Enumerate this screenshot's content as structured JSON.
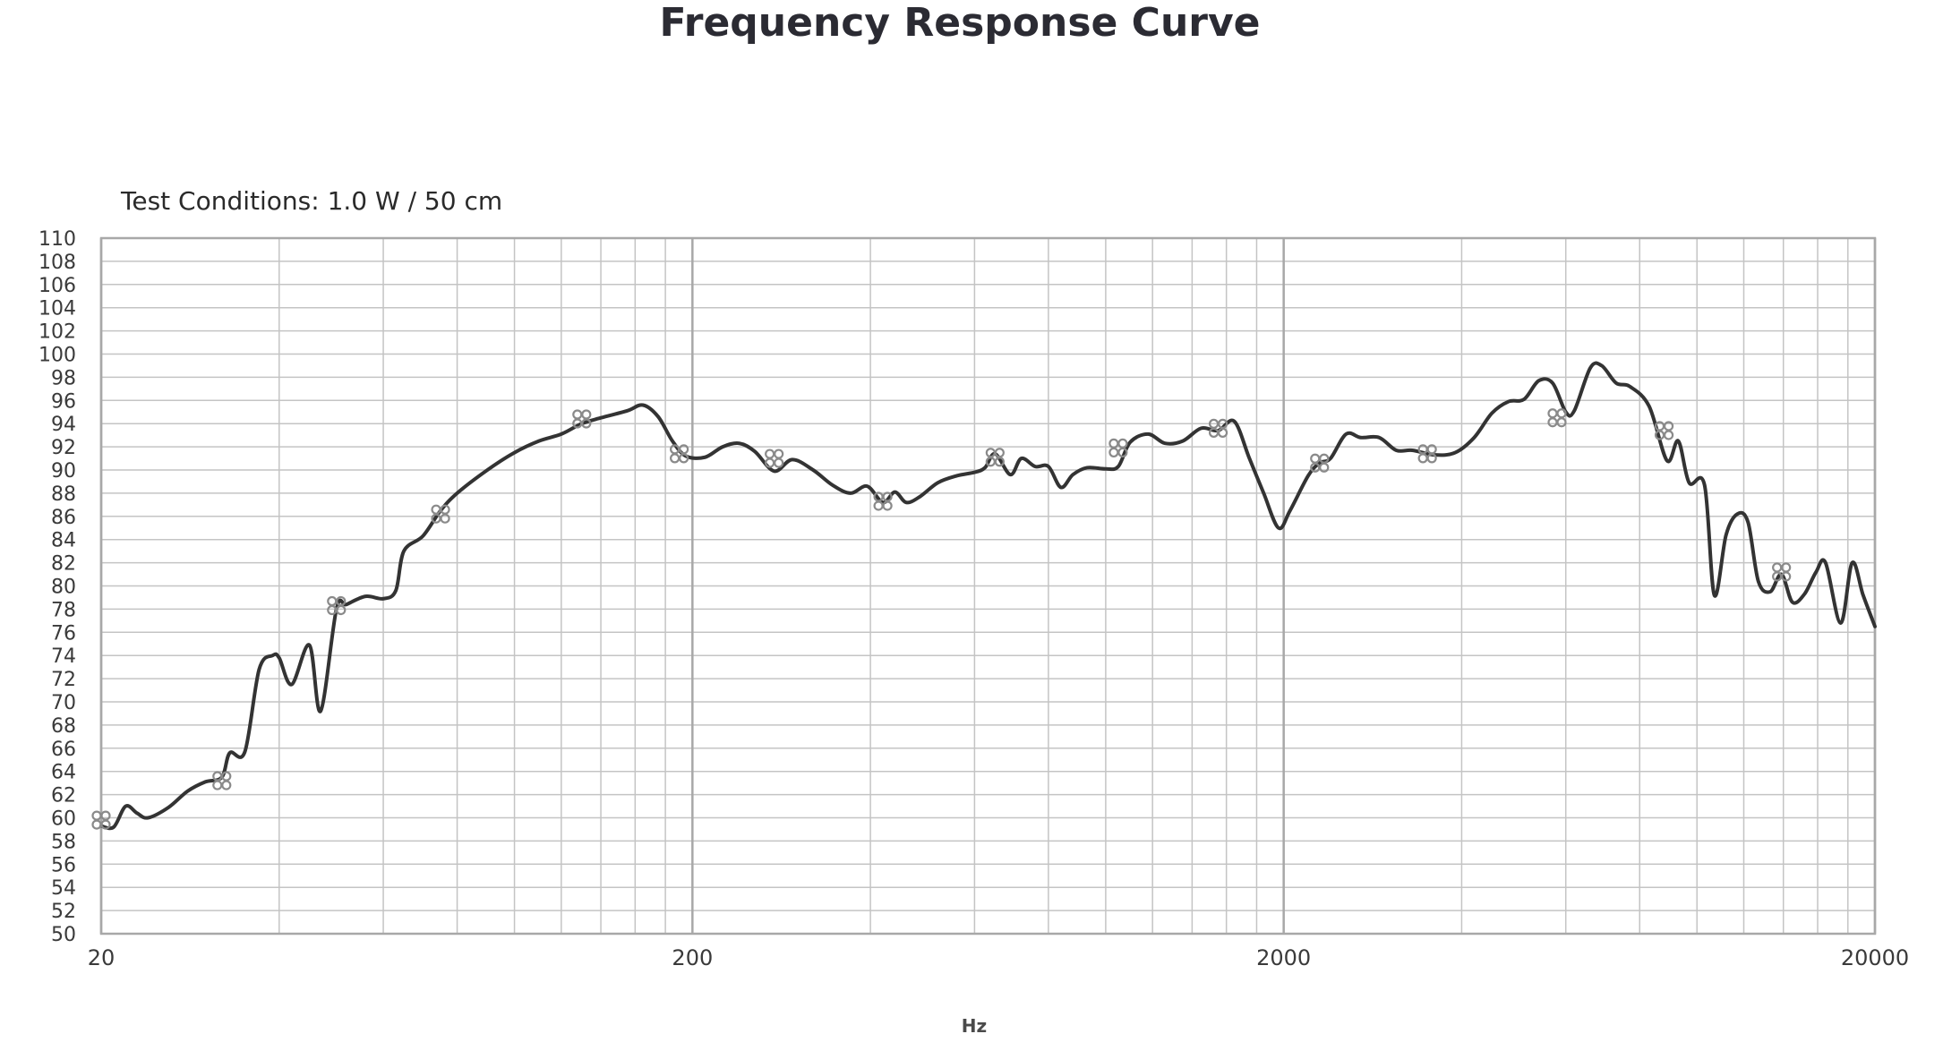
{
  "chart_data": {
    "type": "line",
    "title": "Frequency Response Curve",
    "subtitle": "Test Conditions: 1.0 W / 50 cm",
    "xlabel": "Hz",
    "ylabel": "",
    "x_scale": "log",
    "xlim": [
      20,
      20000
    ],
    "ylim": [
      50,
      110
    ],
    "grid": true,
    "legend": "none",
    "line_color": "#333333",
    "grid_color": "#b8b8b8",
    "x_tick_labels": [
      "20",
      "200",
      "2000",
      "20000"
    ],
    "x_tick_values": [
      20,
      200,
      2000,
      20000
    ],
    "y_tick_labels": [
      "110",
      "108",
      "106",
      "104",
      "102",
      "100",
      "98",
      "96",
      "94",
      "92",
      "90",
      "88",
      "86",
      "84",
      "82",
      "80",
      "78",
      "76",
      "74",
      "72",
      "70",
      "68",
      "66",
      "64",
      "62",
      "60",
      "58",
      "56",
      "54",
      "52",
      "50"
    ],
    "series": [
      {
        "values": [
          [
            20,
            59.3
          ],
          [
            21,
            59.2
          ],
          [
            22,
            61.0
          ],
          [
            23,
            60.4
          ],
          [
            24,
            60.0
          ],
          [
            26,
            60.9
          ],
          [
            28,
            62.3
          ],
          [
            30,
            63.1
          ],
          [
            32,
            63.5
          ],
          [
            33,
            65.6
          ],
          [
            35,
            65.7
          ],
          [
            37,
            72.8
          ],
          [
            39,
            74.0
          ],
          [
            40,
            73.8
          ],
          [
            42,
            71.5
          ],
          [
            45,
            74.9
          ],
          [
            47,
            69.2
          ],
          [
            50,
            78.0
          ],
          [
            52,
            78.4
          ],
          [
            56,
            79.1
          ],
          [
            60,
            78.9
          ],
          [
            63,
            79.6
          ],
          [
            65,
            83.0
          ],
          [
            70,
            84.3
          ],
          [
            75,
            86.5
          ],
          [
            80,
            88.0
          ],
          [
            90,
            90.0
          ],
          [
            100,
            91.5
          ],
          [
            110,
            92.5
          ],
          [
            120,
            93.1
          ],
          [
            130,
            94.0
          ],
          [
            140,
            94.5
          ],
          [
            155,
            95.1
          ],
          [
            165,
            95.6
          ],
          [
            175,
            94.6
          ],
          [
            185,
            92.5
          ],
          [
            195,
            91.2
          ],
          [
            210,
            91.1
          ],
          [
            225,
            92.0
          ],
          [
            240,
            92.3
          ],
          [
            255,
            91.6
          ],
          [
            275,
            89.9
          ],
          [
            295,
            90.9
          ],
          [
            320,
            90.0
          ],
          [
            345,
            88.7
          ],
          [
            370,
            88.0
          ],
          [
            395,
            88.6
          ],
          [
            420,
            87.2
          ],
          [
            440,
            88.1
          ],
          [
            460,
            87.2
          ],
          [
            485,
            87.7
          ],
          [
            520,
            88.9
          ],
          [
            560,
            89.5
          ],
          [
            600,
            89.8
          ],
          [
            625,
            90.2
          ],
          [
            650,
            91.4
          ],
          [
            690,
            89.6
          ],
          [
            720,
            91.0
          ],
          [
            760,
            90.3
          ],
          [
            800,
            90.3
          ],
          [
            840,
            88.5
          ],
          [
            880,
            89.6
          ],
          [
            930,
            90.2
          ],
          [
            1000,
            90.1
          ],
          [
            1050,
            90.3
          ],
          [
            1100,
            92.4
          ],
          [
            1180,
            93.1
          ],
          [
            1260,
            92.3
          ],
          [
            1350,
            92.5
          ],
          [
            1450,
            93.6
          ],
          [
            1550,
            93.4
          ],
          [
            1650,
            94.2
          ],
          [
            1750,
            91.0
          ],
          [
            1850,
            88.0
          ],
          [
            1960,
            85.0
          ],
          [
            2050,
            86.5
          ],
          [
            2200,
            89.5
          ],
          [
            2300,
            90.6
          ],
          [
            2400,
            91.0
          ],
          [
            2550,
            93.1
          ],
          [
            2700,
            92.8
          ],
          [
            2900,
            92.8
          ],
          [
            3100,
            91.7
          ],
          [
            3300,
            91.7
          ],
          [
            3600,
            91.3
          ],
          [
            3900,
            91.5
          ],
          [
            4200,
            92.8
          ],
          [
            4500,
            94.9
          ],
          [
            4800,
            95.9
          ],
          [
            5100,
            96.1
          ],
          [
            5400,
            97.7
          ],
          [
            5700,
            97.5
          ],
          [
            6000,
            95.0
          ],
          [
            6200,
            95.1
          ],
          [
            6600,
            98.8
          ],
          [
            6900,
            99.0
          ],
          [
            7300,
            97.5
          ],
          [
            7700,
            97.2
          ],
          [
            8300,
            95.5
          ],
          [
            8900,
            90.8
          ],
          [
            9300,
            92.5
          ],
          [
            9700,
            88.9
          ],
          [
            10300,
            88.7
          ],
          [
            10700,
            79.2
          ],
          [
            11200,
            84.4
          ],
          [
            11700,
            86.2
          ],
          [
            12200,
            85.5
          ],
          [
            12700,
            80.4
          ],
          [
            13300,
            79.5
          ],
          [
            13900,
            81.0
          ],
          [
            14500,
            78.6
          ],
          [
            15200,
            79.3
          ],
          [
            15900,
            81.2
          ],
          [
            16500,
            82.0
          ],
          [
            17500,
            76.8
          ],
          [
            18300,
            82.0
          ],
          [
            19100,
            79.2
          ],
          [
            20000,
            76.5
          ]
        ]
      }
    ],
    "markers": [
      [
        20,
        59.8
      ],
      [
        32,
        63.2
      ],
      [
        50,
        78.3
      ],
      [
        75,
        86.2
      ],
      [
        130,
        94.4
      ],
      [
        190,
        91.4
      ],
      [
        275,
        91.0
      ],
      [
        420,
        87.3
      ],
      [
        650,
        91.1
      ],
      [
        1050,
        91.9
      ],
      [
        1550,
        93.6
      ],
      [
        2300,
        90.6
      ],
      [
        3500,
        91.4
      ],
      [
        5800,
        94.5
      ],
      [
        8800,
        93.4
      ],
      [
        13900,
        81.2
      ]
    ]
  }
}
